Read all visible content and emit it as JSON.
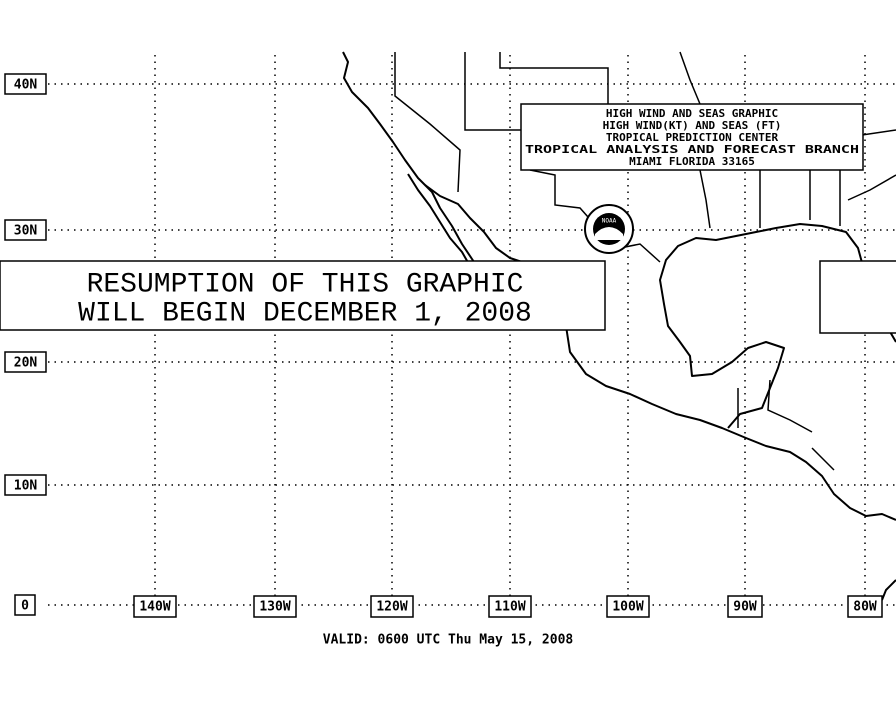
{
  "header": {
    "lines": [
      "HIGH WIND AND SEAS GRAPHIC",
      "HIGH WIND(KT) AND SEAS (FT)",
      "TROPICAL PREDICTION CENTER",
      "TROPICAL ANALYSIS AND FORECAST BRANCH",
      "MIAMI FLORIDA  33165"
    ]
  },
  "logo": {
    "label": "NOAA"
  },
  "notice": {
    "lines": [
      "RESUMPTION OF THIS GRAPHIC",
      "WILL BEGIN DECEMBER 1, 2008"
    ]
  },
  "latitude_labels": [
    "40N",
    "30N",
    "20N",
    "10N",
    "0"
  ],
  "longitude_labels": [
    "140W",
    "130W",
    "120W",
    "110W",
    "100W",
    "90W",
    "80W"
  ],
  "footer": {
    "valid": "VALID: 0600 UTC Thu May 15, 2008"
  }
}
